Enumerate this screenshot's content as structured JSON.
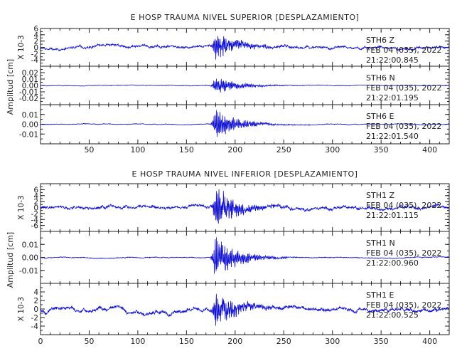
{
  "chart_data": {
    "type": "line",
    "x_range": [
      0,
      420
    ],
    "x_ticks": [
      50,
      100,
      150,
      200,
      250,
      300,
      350,
      400
    ],
    "x_tick_labels_top_group": [
      "50",
      "100",
      "150",
      "200",
      "250",
      "300",
      "350",
      "400"
    ],
    "x_tick_labels_bottom_group": [
      "0",
      "50",
      "100",
      "150",
      "200",
      "250",
      "300",
      "350",
      "400"
    ],
    "line_color": "#1010d0",
    "grid": false,
    "groups": [
      {
        "title": "E HOSP TRAUMA NIVEL SUPERIOR [DESPLAZAMIENTO]",
        "ylabel": "Amplitud [cm]",
        "panels": [
          {
            "station": "STH6",
            "component": "Z",
            "date": "FEB 04 (035), 2022",
            "time": "21:22:00.845",
            "scale_label": "X 10-3",
            "ylim": [
              -6,
              6
            ],
            "y_ticks": [
              -4,
              -2,
              0,
              2,
              4,
              6
            ],
            "y_tick_labels": [
              "-4",
              "-2",
              "0",
              "2",
              "4",
              "6"
            ],
            "event_time": 178,
            "noise_amp": 0.9,
            "peak_amp": 4.5,
            "seed": 11
          },
          {
            "station": "STH6",
            "component": "N",
            "date": "FEB 04 (035), 2022",
            "time": "21:22:01.195",
            "scale_label": "",
            "ylim": [
              -0.03,
              0.03
            ],
            "y_ticks": [
              -0.02,
              -0.01,
              0.0,
              0.01,
              0.02
            ],
            "y_tick_labels": [
              "-0.02",
              "-0.01",
              "0.00",
              "0.01",
              "0.02"
            ],
            "event_time": 178,
            "noise_amp": 0.001,
            "peak_amp": 0.014,
            "seed": 23
          },
          {
            "station": "STH6",
            "component": "E",
            "date": "FEB 04 (035), 2022",
            "time": "21:22:01.540",
            "scale_label": "",
            "ylim": [
              -0.02,
              0.02
            ],
            "y_ticks": [
              -0.01,
              0.0,
              0.01
            ],
            "y_tick_labels": [
              "-0.01",
              "0.00",
              "0.01"
            ],
            "event_time": 178,
            "noise_amp": 0.0008,
            "peak_amp": 0.016,
            "seed": 37
          }
        ]
      },
      {
        "title": "E HOSP TRAUMA NIVEL INFERIOR [DESPLAZAMIENTO]",
        "ylabel": "Amplitud [cm]",
        "panels": [
          {
            "station": "STH1",
            "component": "Z",
            "date": "FEB 04 (035), 2022",
            "time": "21:22:01.115",
            "scale_label": "X 10-3",
            "ylim": [
              -8,
              8
            ],
            "y_ticks": [
              -6,
              -4,
              -2,
              0,
              2,
              4,
              6
            ],
            "y_tick_labels": [
              "-6",
              "-4",
              "-2",
              "0",
              "2",
              "4",
              "6"
            ],
            "event_time": 178,
            "noise_amp": 1.2,
            "peak_amp": 7,
            "seed": 41
          },
          {
            "station": "STH1",
            "component": "N",
            "date": "FEB 04 (035), 2022",
            "time": "21:22:00.960",
            "scale_label": "",
            "ylim": [
              -0.02,
              0.02
            ],
            "y_ticks": [
              -0.01,
              0.0,
              0.01
            ],
            "y_tick_labels": [
              "-0.01",
              "0.00",
              "0.01"
            ],
            "event_time": 178,
            "noise_amp": 0.0007,
            "peak_amp": 0.017,
            "seed": 53
          },
          {
            "station": "STH1",
            "component": "E",
            "date": "FEB 04 (035), 2022",
            "time": "21:22:00.525",
            "scale_label": "X 10-3",
            "ylim": [
              -6,
              6
            ],
            "y_ticks": [
              -4,
              -2,
              0,
              2,
              4
            ],
            "y_tick_labels": [
              "-4",
              "-2",
              "0",
              "2",
              "4"
            ],
            "event_time": 178,
            "noise_amp": 1.0,
            "peak_amp": 4.5,
            "seed": 67
          }
        ]
      }
    ]
  }
}
